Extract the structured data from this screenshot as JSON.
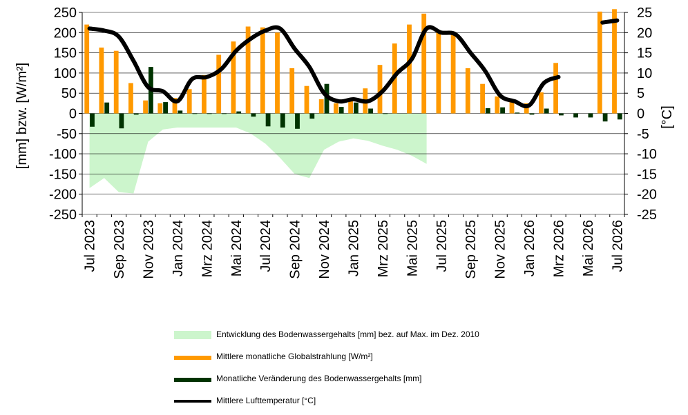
{
  "chart_data": {
    "type": "bar",
    "categories": [
      "Jul 2023",
      "Aug 2023",
      "Sep 2023",
      "Okt 2023",
      "Nov 2023",
      "Dez 2023",
      "Jan 2024",
      "Feb 2024",
      "Mrz 2024",
      "Apr 2024",
      "Mai 2024",
      "Jun 2024",
      "Jul 2024",
      "Aug 2024",
      "Sep 2024",
      "Okt 2024",
      "Nov 2024",
      "Dez 2024",
      "Jan 2025",
      "Feb 2025",
      "Mrz 2025",
      "Apr 2025",
      "Mai 2025",
      "Jun 2025",
      "Jul 2025",
      "Aug 2025",
      "Sep 2025",
      "Okt 2025",
      "Nov 2025",
      "Dez 2025",
      "Jan 2026",
      "Feb 2026",
      "Mrz 2026",
      "Apr 2026",
      "Mai 2026",
      "Jun 2026",
      "Jul 2026"
    ],
    "x_tick_labels": [
      "Jul 2023",
      "Sep 2023",
      "Nov 2023",
      "Jan 2024",
      "Mrz 2024",
      "Mai 2024",
      "Jul 2024",
      "Sep 2024",
      "Nov 2024",
      "Jan 2025",
      "Mrz 2025",
      "Mai 2025",
      "Jul 2025",
      "Sep 2025",
      "Nov 2025",
      "Jan 2026",
      "Mrz 2026",
      "Mai 2026",
      "Jul 2026"
    ],
    "ylabel": "[mm] bzw. [W/m²]",
    "ylabel_right": "[°C]",
    "ylim": [
      -250,
      250
    ],
    "ylim_right": [
      -25,
      25
    ],
    "y_ticks": [
      250,
      200,
      150,
      100,
      50,
      0,
      -50,
      -100,
      -150,
      -200,
      -250
    ],
    "y_ticks_right": [
      25,
      20,
      15,
      10,
      5,
      0,
      -5,
      -10,
      -15,
      -20,
      -25
    ],
    "grid": true,
    "legend_position": "bottom",
    "series": [
      {
        "name": "Entwicklung des Bodenwassergehalts [mm] bez. auf Max. im Dez. 2010",
        "kind": "area",
        "color": "#ccf5cc",
        "x": [
          0,
          1,
          2,
          3,
          4,
          5,
          6,
          7,
          8,
          9,
          10,
          11,
          12,
          13,
          14,
          15,
          16,
          17,
          18,
          19,
          20
        ],
        "values": [
          -185,
          -160,
          -195,
          -198,
          -70,
          -40,
          -35,
          -35,
          -35,
          -35,
          -35,
          -50,
          -75,
          -110,
          -150,
          -160,
          -90,
          -70,
          -35,
          -30,
          -35
        ],
        "x2": [
          13,
          14,
          15,
          16,
          17,
          18,
          19,
          20,
          21,
          22,
          23
        ],
        "values2": [
          -100,
          -85,
          -68,
          -65,
          -70,
          -62,
          -68,
          -80,
          -90,
          -105,
          -125
        ]
      },
      {
        "name": "Mittlere monatliche Globalstrahlung [W/m²]",
        "kind": "bar",
        "color": "#ff9900",
        "values": [
          220,
          163,
          155,
          75,
          32,
          25,
          38,
          60,
          95,
          145,
          178,
          215,
          213,
          200,
          112,
          68,
          35,
          25,
          32,
          62,
          120,
          173,
          220,
          247,
          205,
          195,
          112,
          73,
          42,
          35,
          25,
          52,
          125,
          null,
          null,
          252,
          258
        ]
      },
      {
        "name": "Monatliche Veränderung des Bodenwassergehalts [mm]",
        "kind": "bar",
        "color": "#003300",
        "values": [
          -33,
          27,
          -37,
          -3,
          115,
          28,
          7,
          0,
          0,
          0,
          5,
          -8,
          -32,
          -35,
          -38,
          -13,
          73,
          16,
          27,
          12,
          0,
          null,
          null,
          null,
          null,
          null,
          null,
          13,
          15,
          2,
          -3,
          12,
          -5,
          -10,
          -10,
          -20,
          -15
        ]
      },
      {
        "name": "Mittlere Lufttemperatur [°C]",
        "kind": "line",
        "axis": "right",
        "color": "#000000",
        "values": [
          21,
          20.5,
          19,
          13,
          6.5,
          5.5,
          3,
          8.5,
          9,
          11,
          15.5,
          18.5,
          20.5,
          21,
          16,
          11.5,
          5,
          3,
          3.5,
          3,
          5.5,
          10,
          13.5,
          21,
          20,
          19.5,
          15,
          10.5,
          4.5,
          3,
          2,
          7.5,
          9,
          null,
          null,
          22.5,
          23
        ]
      }
    ]
  }
}
